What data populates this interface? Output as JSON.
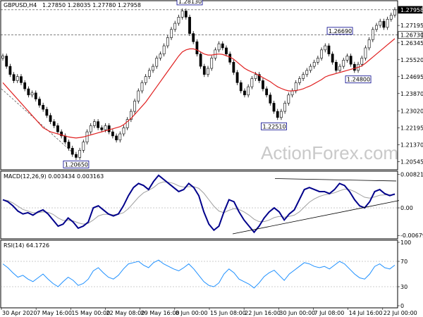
{
  "header": {
    "symbol": "GBPUSD,H4",
    "ohlc": "1.27850 1.28035 1.27780 1.27958"
  },
  "watermark": "ActionForex.com",
  "colors": {
    "candle": "#000000",
    "ma": "#e02020",
    "macd": "#00008b",
    "signal": "#a0a0a0",
    "rsi": "#1e90ff",
    "trendline": "#000000",
    "grid": "#c0c0c0"
  },
  "chart_data": [
    {
      "type": "candlestick",
      "panel": "price",
      "ylim": [
        1.2025,
        1.283
      ],
      "y_ticks": [
        "1.27958",
        "1.27195",
        "1.26730",
        "1.26345",
        "1.25520",
        "1.24695",
        "1.23870",
        "1.23020",
        "1.22195",
        "1.21370",
        "1.20545"
      ],
      "x_ticks": [
        "30 Apr 2020",
        "7 May 16:00",
        "15 May 00:00",
        "22 May 08:00",
        "29 May 16:00",
        "8 Jun 00:00",
        "15 Jun 08:00",
        "22 Jun 16:00",
        "30 Jun 00:00",
        "7 Jul 08:00",
        "14 Jul 16:00",
        "22 Jul 00:00"
      ],
      "close_path": [
        1.257,
        1.252,
        1.248,
        1.245,
        1.247,
        1.244,
        1.241,
        1.238,
        1.239,
        1.236,
        1.233,
        1.231,
        1.228,
        1.225,
        1.223,
        1.22,
        1.218,
        1.215,
        1.212,
        1.209,
        1.2075,
        1.211,
        1.215,
        1.22,
        1.223,
        1.225,
        1.222,
        1.221,
        1.223,
        1.22,
        1.218,
        1.216,
        1.219,
        1.222,
        1.226,
        1.23,
        1.235,
        1.24,
        1.244,
        1.247,
        1.25,
        1.252,
        1.256,
        1.258,
        1.262,
        1.266,
        1.27,
        1.273,
        1.276,
        1.279,
        1.276,
        1.268,
        1.264,
        1.258,
        1.252,
        1.248,
        1.251,
        1.256,
        1.26,
        1.263,
        1.261,
        1.258,
        1.254,
        1.249,
        1.244,
        1.24,
        1.238,
        1.242,
        1.246,
        1.248,
        1.245,
        1.241,
        1.238,
        1.234,
        1.23,
        1.227,
        1.23,
        1.234,
        1.238,
        1.24,
        1.244,
        1.246,
        1.248,
        1.25,
        1.252,
        1.254,
        1.256,
        1.26,
        1.262,
        1.258,
        1.254,
        1.25,
        1.252,
        1.255,
        1.257,
        1.253,
        1.25,
        1.253,
        1.256,
        1.261,
        1.265,
        1.27,
        1.272,
        1.274,
        1.271,
        1.275,
        1.277,
        1.2796
      ],
      "ma_path": [
        1.244,
        1.242,
        1.24,
        1.238,
        1.236,
        1.234,
        1.232,
        1.23,
        1.228,
        1.226,
        1.224,
        1.222,
        1.221,
        1.22,
        1.2195,
        1.219,
        1.2185,
        1.218,
        1.2175,
        1.2172,
        1.217,
        1.2172,
        1.2175,
        1.218,
        1.2185,
        1.219,
        1.2195,
        1.22,
        1.2205,
        1.221,
        1.2215,
        1.222,
        1.2225,
        1.2235,
        1.225,
        1.2265,
        1.2285,
        1.2305,
        1.2325,
        1.2345,
        1.237,
        1.2395,
        1.242,
        1.2445,
        1.247,
        1.2495,
        1.252,
        1.2545,
        1.257,
        1.259,
        1.26,
        1.2605,
        1.2605,
        1.26,
        1.259,
        1.258,
        1.2575,
        1.2575,
        1.2578,
        1.258,
        1.2578,
        1.2572,
        1.2565,
        1.2555,
        1.254,
        1.2525,
        1.251,
        1.25,
        1.2492,
        1.2485,
        1.2475,
        1.2465,
        1.2455,
        1.2445,
        1.2432,
        1.242,
        1.2412,
        1.2405,
        1.24,
        1.24,
        1.2402,
        1.2405,
        1.241,
        1.2418,
        1.2425,
        1.2435,
        1.2445,
        1.2455,
        1.2468,
        1.2475,
        1.248,
        1.2485,
        1.249,
        1.2495,
        1.25,
        1.2505,
        1.251,
        1.2515,
        1.2522,
        1.2535,
        1.255,
        1.2565,
        1.258,
        1.2595,
        1.261,
        1.2625,
        1.264,
        1.2655
      ],
      "annotations": [
        {
          "text": "1.28130",
          "x_index": 51,
          "y": 1.2813
        },
        {
          "text": "1.26690",
          "x_index": 92,
          "y": 1.2669
        },
        {
          "text": "1.24800",
          "x_index": 97,
          "y": 1.248
        },
        {
          "text": "1.22510",
          "x_index": 74,
          "y": 1.2251
        },
        {
          "text": "1.20650",
          "x_index": 20,
          "y": 1.2065
        }
      ],
      "hline": 1.2673,
      "title": "",
      "xlabel": "",
      "ylabel": ""
    },
    {
      "type": "line",
      "panel": "macd",
      "label": "MACD(12,26,9) 0.003434 0.003163",
      "ylim": [
        -0.0071,
        0.0085
      ],
      "y_ticks": [
        "0.008213",
        "0.00",
        "-0.006796"
      ],
      "macd": [
        0.002,
        0.0015,
        0.0005,
        -0.0008,
        -0.0015,
        -0.0012,
        -0.0018,
        -0.001,
        -0.0005,
        -0.0015,
        -0.003,
        -0.0045,
        -0.004,
        -0.0025,
        -0.0035,
        -0.005,
        -0.0045,
        -0.0035,
        0.0,
        0.0005,
        -0.0005,
        -0.0015,
        -0.002,
        -0.0015,
        0.0005,
        0.003,
        0.005,
        0.006,
        0.0055,
        0.0045,
        0.0065,
        0.008,
        0.007,
        0.006,
        0.005,
        0.004,
        0.0045,
        0.006,
        0.005,
        0.003,
        -0.001,
        -0.004,
        -0.0055,
        -0.0045,
        -0.001,
        0.002,
        0.0015,
        -0.001,
        -0.003,
        -0.0045,
        -0.006,
        -0.0045,
        -0.0025,
        -0.001,
        0.0,
        -0.001,
        -0.003,
        -0.0015,
        -0.0005,
        0.002,
        0.0045,
        0.005,
        0.0045,
        0.004,
        0.004,
        0.0035,
        0.0045,
        0.006,
        0.0055,
        0.004,
        0.002,
        0.0005,
        0.0,
        0.0015,
        0.004,
        0.0045,
        0.0035,
        0.003,
        0.0034
      ],
      "signal": [
        0.002,
        0.0018,
        0.0012,
        0.0004,
        -0.0004,
        -0.0008,
        -0.0012,
        -0.0012,
        -0.001,
        -0.0011,
        -0.0016,
        -0.0025,
        -0.0031,
        -0.0031,
        -0.0032,
        -0.0037,
        -0.004,
        -0.0038,
        -0.003,
        -0.002,
        -0.0016,
        -0.0016,
        -0.0017,
        -0.0016,
        -0.0012,
        -0.0002,
        0.0012,
        0.0026,
        0.0037,
        0.0043,
        0.005,
        0.006,
        0.0064,
        0.0063,
        0.006,
        0.0054,
        0.0051,
        0.0052,
        0.0052,
        0.0048,
        0.0036,
        0.002,
        0.0004,
        -0.0008,
        -0.0012,
        -0.0006,
        -0.0002,
        -0.0004,
        -0.001,
        -0.0018,
        -0.0028,
        -0.0034,
        -0.0034,
        -0.003,
        -0.0024,
        -0.0021,
        -0.0023,
        -0.0021,
        -0.0018,
        -0.001,
        0.0002,
        0.0014,
        0.0022,
        0.0028,
        0.0032,
        0.0034,
        0.0037,
        0.0042,
        0.0046,
        0.0045,
        0.004,
        0.0033,
        0.0026,
        0.0024,
        0.0027,
        0.0031,
        0.0032,
        0.0032,
        0.0032
      ]
    },
    {
      "type": "line",
      "panel": "rsi",
      "label": "RSI(14) 64.1726",
      "ylim": [
        0,
        100
      ],
      "y_ticks": [
        "100",
        "70",
        "30",
        "0"
      ],
      "values": [
        66,
        60,
        52,
        45,
        48,
        42,
        38,
        44,
        50,
        42,
        35,
        30,
        38,
        45,
        40,
        32,
        35,
        42,
        55,
        60,
        52,
        45,
        42,
        48,
        58,
        66,
        68,
        70,
        64,
        60,
        68,
        72,
        66,
        62,
        58,
        55,
        60,
        66,
        58,
        48,
        38,
        32,
        30,
        36,
        50,
        58,
        52,
        42,
        38,
        34,
        28,
        36,
        46,
        52,
        56,
        48,
        40,
        50,
        56,
        62,
        68,
        66,
        62,
        60,
        62,
        58,
        64,
        70,
        66,
        58,
        50,
        44,
        42,
        50,
        62,
        66,
        60,
        58,
        64
      ]
    }
  ]
}
